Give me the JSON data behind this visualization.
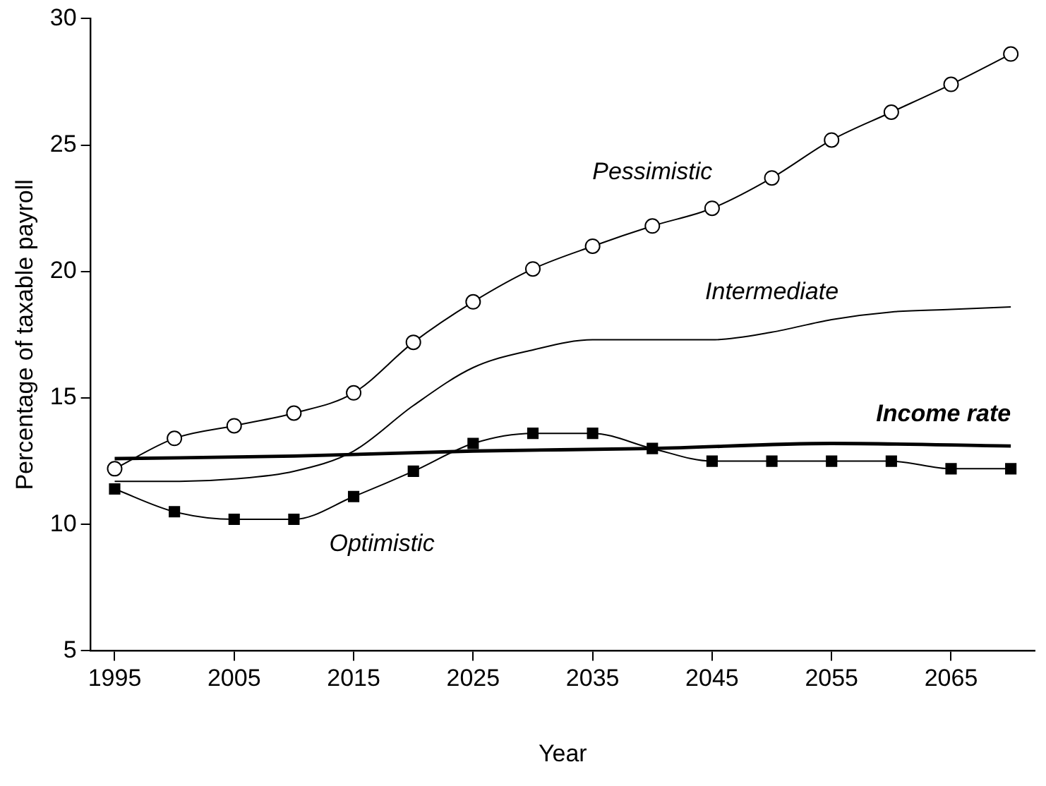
{
  "chart_data": {
    "type": "line",
    "xlabel": "Year",
    "ylabel": "Percentage of taxable payroll",
    "xlim": [
      1993,
      2072
    ],
    "xticks": [
      1995,
      2005,
      2015,
      2025,
      2035,
      2045,
      2055,
      2065
    ],
    "ylim": [
      5,
      30
    ],
    "yticks": [
      5,
      10,
      15,
      20,
      25,
      30
    ],
    "grid": false,
    "legend": false,
    "x": [
      1995,
      2000,
      2005,
      2010,
      2015,
      2020,
      2025,
      2030,
      2035,
      2040,
      2045,
      2050,
      2055,
      2060,
      2065,
      2070
    ],
    "series": [
      {
        "name": "Pessimistic",
        "color": "#000000",
        "marker": "circle",
        "values": [
          12.2,
          13.4,
          13.9,
          14.4,
          15.2,
          17.2,
          18.8,
          20.1,
          21.0,
          21.8,
          22.5,
          23.7,
          25.2,
          26.3,
          27.4,
          28.6
        ]
      },
      {
        "name": "Intermediate",
        "color": "#000000",
        "marker": "none",
        "values": [
          11.7,
          11.7,
          11.8,
          12.1,
          12.9,
          14.7,
          16.2,
          16.9,
          17.3,
          17.3,
          17.3,
          17.6,
          18.1,
          18.4,
          18.5,
          18.6
        ]
      },
      {
        "name": "Optimistic",
        "color": "#000000",
        "marker": "square",
        "values": [
          11.4,
          10.5,
          10.2,
          10.2,
          11.1,
          12.1,
          13.2,
          13.6,
          13.6,
          13.0,
          12.5,
          12.5,
          12.5,
          12.5,
          12.2,
          12.2
        ]
      },
      {
        "name": "Income rate",
        "color": "#000000",
        "marker": "none",
        "x": [
          1995,
          2010,
          2025,
          2040,
          2055,
          2070
        ],
        "values": [
          12.6,
          12.7,
          12.9,
          13.0,
          13.2,
          13.1
        ]
      }
    ]
  }
}
